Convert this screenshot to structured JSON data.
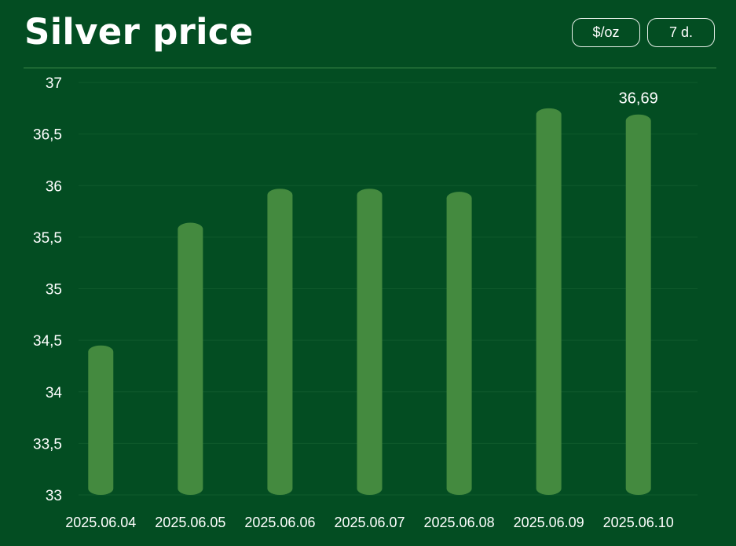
{
  "header": {
    "title": "Silver price",
    "unit_button": "$/oz",
    "range_button": "7 d."
  },
  "colors": {
    "background": "#034d22",
    "bar": "#448a3f",
    "grid": "#0f5a2c"
  },
  "chart_data": {
    "type": "bar",
    "title": "Silver price",
    "xlabel": "",
    "ylabel": "",
    "categories": [
      "2025.06.04",
      "2025.06.05",
      "2025.06.06",
      "2025.06.07",
      "2025.06.08",
      "2025.06.09",
      "2025.06.10"
    ],
    "values": [
      34.45,
      35.64,
      35.97,
      35.97,
      35.94,
      36.75,
      36.69
    ],
    "ylim": [
      33,
      37
    ],
    "yticks": [
      33,
      33.5,
      34,
      34.5,
      35,
      35.5,
      36,
      36.5,
      37
    ],
    "ytick_labels": [
      "33",
      "33,5",
      "34",
      "34,5",
      "35",
      "35,5",
      "36",
      "36,5",
      "37"
    ],
    "grid": true,
    "legend": "none",
    "data_labels": [
      {
        "index": 6,
        "text": "36,69"
      }
    ]
  }
}
